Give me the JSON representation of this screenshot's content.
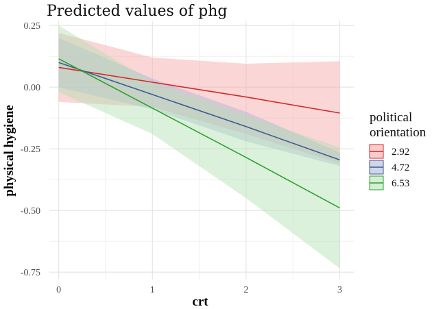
{
  "chart_data": {
    "type": "line",
    "title": "Predicted values of phg",
    "xlabel": "crt",
    "ylabel": "physical hygiene",
    "xlim": [
      -0.1,
      3.15
    ],
    "ylim": [
      -0.78,
      0.27
    ],
    "x_ticks": [
      0,
      1,
      2,
      3
    ],
    "x_tick_labels": [
      "0",
      "1",
      "2",
      "3"
    ],
    "y_ticks": [
      0.25,
      0.0,
      -0.25,
      -0.5,
      -0.75
    ],
    "y_tick_labels": [
      "0.25",
      "0.00",
      "-0.25",
      "-0.50",
      "-0.75"
    ],
    "grid": true,
    "legend": {
      "title_lines": [
        "political",
        "orientation"
      ],
      "placement": "right"
    },
    "series": [
      {
        "name": "2.92",
        "color": "#d62728",
        "fill": "#f4a3a3",
        "x": [
          0,
          1,
          2,
          3
        ],
        "values": [
          0.08,
          0.02,
          -0.04,
          -0.105
        ],
        "lower": [
          -0.06,
          -0.08,
          -0.19,
          -0.31
        ],
        "upper": [
          0.22,
          0.12,
          0.095,
          0.105
        ]
      },
      {
        "name": "4.72",
        "color": "#3b5b92",
        "fill": "#aab5d6",
        "x": [
          0,
          1,
          2,
          3
        ],
        "values": [
          0.1,
          -0.03,
          -0.16,
          -0.295
        ],
        "lower": [
          0.0,
          -0.09,
          -0.22,
          -0.32
        ],
        "upper": [
          0.2,
          0.035,
          -0.1,
          -0.265
        ]
      },
      {
        "name": "6.53",
        "color": "#2ca02c",
        "fill": "#b2e0b2",
        "x": [
          0,
          1,
          2,
          3
        ],
        "values": [
          0.115,
          -0.085,
          -0.285,
          -0.49
        ],
        "lower": [
          -0.02,
          -0.19,
          -0.45,
          -0.735
        ],
        "upper": [
          0.25,
          0.02,
          -0.115,
          -0.245
        ]
      }
    ]
  }
}
